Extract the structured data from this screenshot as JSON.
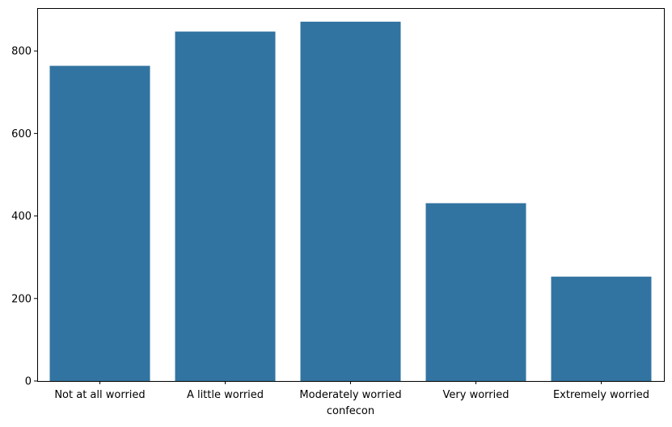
{
  "chart_data": {
    "type": "bar",
    "categories": [
      "Not at all worried",
      "A little worried",
      "Moderately worried",
      "Very worried",
      "Extremely worried"
    ],
    "values": [
      764,
      847,
      871,
      431,
      253
    ],
    "title": "",
    "xlabel": "confecon",
    "ylabel": "",
    "ylim": [
      0,
      904
    ],
    "yticks": [
      0,
      200,
      400,
      600,
      800
    ],
    "grid": false,
    "legend": "none",
    "bar_color": "#3274a1"
  }
}
